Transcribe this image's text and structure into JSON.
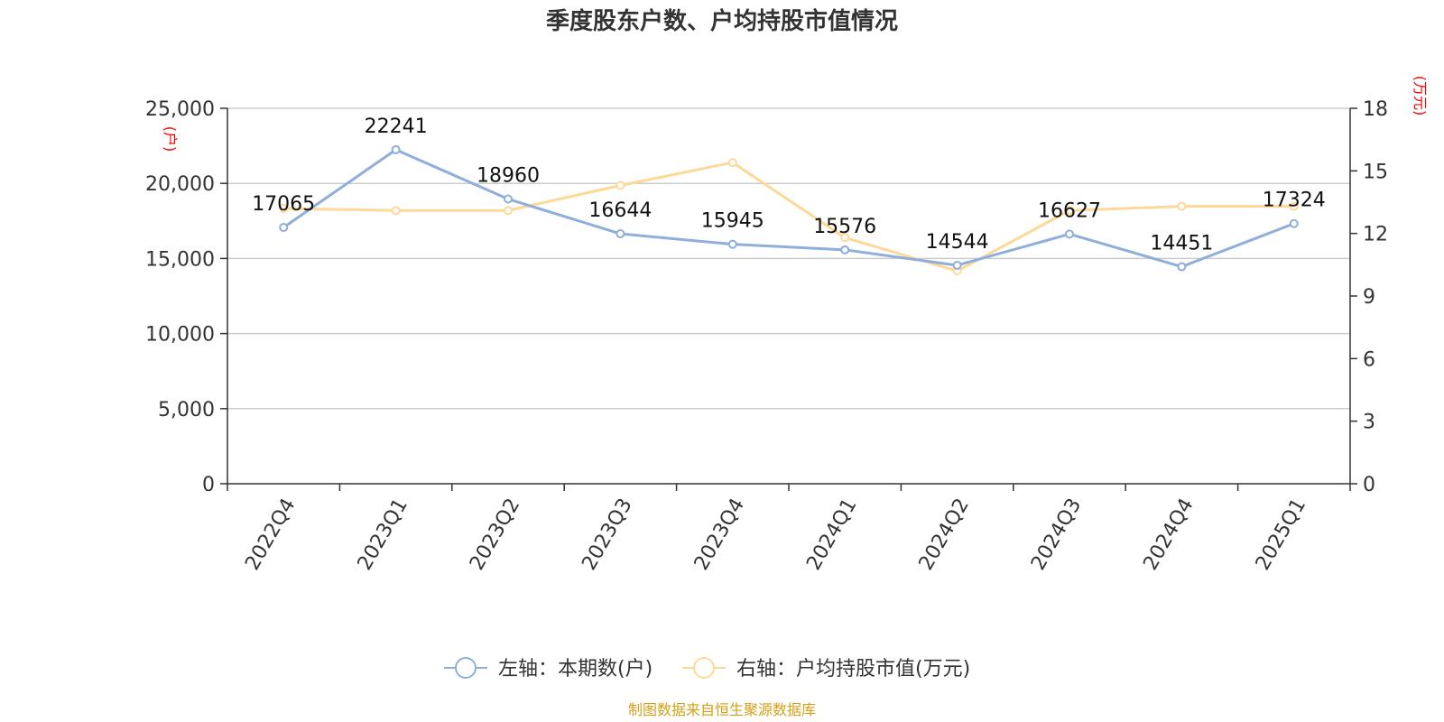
{
  "chart_data": {
    "type": "line",
    "title": "季度股东户数、户均持股市值情况",
    "categories": [
      "2022Q4",
      "2023Q1",
      "2023Q2",
      "2023Q3",
      "2023Q4",
      "2024Q1",
      "2024Q2",
      "2024Q3",
      "2024Q4",
      "2025Q1"
    ],
    "left_axis": {
      "unit": "(户)",
      "ylim": [
        0,
        25000
      ],
      "ticks": [
        0,
        5000,
        10000,
        15000,
        20000,
        25000
      ],
      "tick_labels": [
        "0",
        "5,000",
        "10,000",
        "15,000",
        "20,000",
        "25,000"
      ]
    },
    "right_axis": {
      "unit": "(万元)",
      "ylim": [
        0,
        18
      ],
      "ticks": [
        0,
        3,
        6,
        9,
        12,
        15,
        18
      ],
      "tick_labels": [
        "0",
        "3",
        "6",
        "9",
        "12",
        "15",
        "18"
      ]
    },
    "grid": true,
    "legend_position": "bottom",
    "series": [
      {
        "name": "左轴：本期数(户)",
        "axis": "left",
        "color": "#8eaedb",
        "values": [
          17065,
          22241,
          18960,
          16644,
          15945,
          15576,
          14544,
          16627,
          14451,
          17324
        ],
        "labels": [
          "17065",
          "22241",
          "18960",
          "16644",
          "15945",
          "15576",
          "14544",
          "16627",
          "14451",
          "17324"
        ]
      },
      {
        "name": "右轴：户均持股市值(万元)",
        "axis": "right",
        "color": "#fdd998",
        "values": [
          13.2,
          13.1,
          13.1,
          14.3,
          15.4,
          11.8,
          10.2,
          13.1,
          13.3,
          13.3
        ]
      }
    ],
    "source": "制图数据来自恒生聚源数据库"
  }
}
